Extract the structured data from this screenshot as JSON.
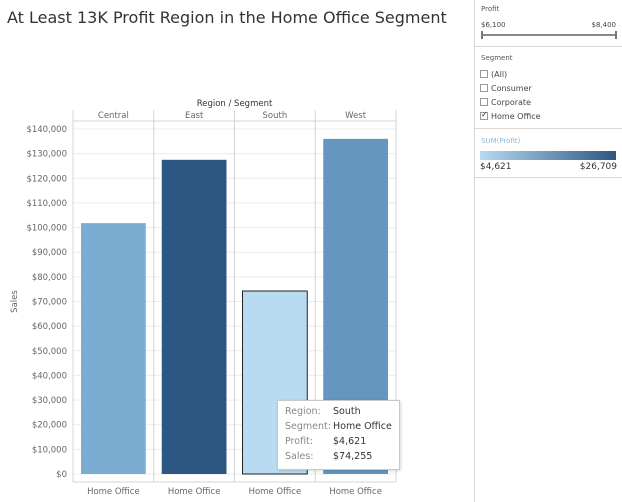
{
  "title": "At Least 13K Profit Region in the Home Office Segment",
  "chart_data": {
    "type": "bar",
    "column_header": "Region / Segment",
    "regions": [
      "Central",
      "East",
      "South",
      "West"
    ],
    "categories": [
      "Home Office",
      "Home Office",
      "Home Office",
      "Home Office"
    ],
    "values": [
      101800,
      127500,
      74255,
      136000
    ],
    "profit": [
      null,
      null,
      4621,
      null
    ],
    "colors": [
      "#7bacd2",
      "#2c5782",
      "#b8dbf1",
      "#6496c0"
    ],
    "highlighted": 2,
    "ylabel": "Sales",
    "ylim": [
      0,
      140000
    ],
    "yticks": [
      "$0",
      "$10,000",
      "$20,000",
      "$30,000",
      "$40,000",
      "$50,000",
      "$60,000",
      "$70,000",
      "$80,000",
      "$90,000",
      "$100,000",
      "$110,000",
      "$120,000",
      "$130,000",
      "$140,000"
    ]
  },
  "tooltip": {
    "rows": [
      {
        "key": "Region:",
        "value": "South"
      },
      {
        "key": "Segment:",
        "value": "Home Office"
      },
      {
        "key": "Profit:",
        "value": "$4,621"
      },
      {
        "key": "Sales:",
        "value": "$74,255"
      }
    ]
  },
  "filters": {
    "profit": {
      "title": "Profit",
      "min": "$6,100",
      "max": "$8,400"
    },
    "segment": {
      "title": "Segment",
      "options": [
        {
          "label": "(All)",
          "checked": false
        },
        {
          "label": "Consumer",
          "checked": false
        },
        {
          "label": "Corporate",
          "checked": false
        },
        {
          "label": "Home Office",
          "checked": true
        }
      ]
    },
    "legend": {
      "title": "SUM(Profit)",
      "min": "$4,621",
      "max": "$26,709",
      "color_low": "#b7daf0",
      "color_high": "#2c5782"
    }
  }
}
